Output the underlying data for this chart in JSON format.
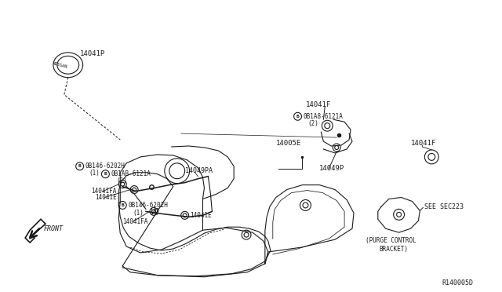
{
  "bg_color": "#ffffff",
  "line_color": "#1a1a1a",
  "text_color": "#1a1a1a",
  "diagram_id": "R140005D",
  "parts": {
    "main_cover": "14005E",
    "clip_top_right": "14041F",
    "bolt_b1": "0B1A8-6121A",
    "bolt_b1_qty": "(2)",
    "bracket_right": "14049P",
    "bolt_b2": "0B146-6202H",
    "bolt_b2_qty": "(1)",
    "bolt_b3": "0B1AB-6121A",
    "bolt_b3_qty": "(2)",
    "clip_fa": "14041FA",
    "clip_e": "14041E",
    "bracket_left": "14049PA",
    "bolt_b4": "0B146-6202H",
    "bolt_b4_qty": "(1)",
    "cap": "14041P",
    "clip_right2": "14041F",
    "purge_bracket": "(PURGE CONTROL\nBRACKET)",
    "see_sec": "SEE SEC223"
  }
}
